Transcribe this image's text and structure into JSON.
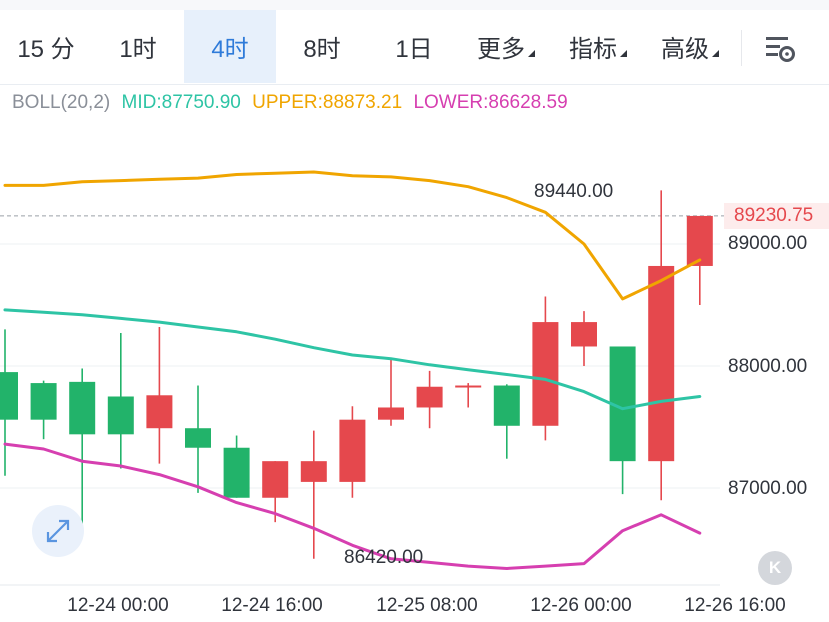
{
  "tabs": [
    {
      "label": "15 分",
      "active": false
    },
    {
      "label": "1时",
      "active": false
    },
    {
      "label": "4时",
      "active": true
    },
    {
      "label": "8时",
      "active": false
    },
    {
      "label": "1日",
      "active": false
    },
    {
      "label": "更多",
      "active": false,
      "dropdown": true
    },
    {
      "label": "指标",
      "active": false,
      "dropdown": true
    },
    {
      "label": "高级",
      "active": false,
      "dropdown": true
    }
  ],
  "settings_icon": "chart-settings-icon",
  "legend": {
    "name": "BOLL(20,2)",
    "mid": "MID:87750.90",
    "upper": "UPPER:88873.21",
    "lower": "LOWER:86628.59"
  },
  "colors": {
    "mid": "#2ec4a5",
    "upper": "#f0a500",
    "lower": "#d63fb0",
    "up": "#e5484d",
    "down": "#22b36a",
    "accent": "#2f7bd9"
  },
  "price_axis": [
    "89000.00",
    "88000.00",
    "87000.00"
  ],
  "last_price": "89230.75",
  "high_label": "89440.00",
  "low_label": "86420.00",
  "time_axis": [
    "12-24 00:00",
    "12-24 16:00",
    "12-25 08:00",
    "12-26 00:00",
    "12-26 16:00"
  ],
  "zoom_icon": "expand-arrows-icon",
  "k_button": "K",
  "chart_data": {
    "type": "candlestick",
    "candles": [
      {
        "o": 87950,
        "h": 88300,
        "l": 87100,
        "c": 87560
      },
      {
        "o": 87860,
        "h": 87880,
        "l": 87400,
        "c": 87560
      },
      {
        "o": 87870,
        "h": 87980,
        "l": 86620,
        "c": 87440
      },
      {
        "o": 87750,
        "h": 88270,
        "l": 87160,
        "c": 87440
      },
      {
        "o": 87490,
        "h": 88320,
        "l": 87200,
        "c": 87760
      },
      {
        "o": 87490,
        "h": 87840,
        "l": 86960,
        "c": 87330
      },
      {
        "o": 87330,
        "h": 87430,
        "l": 86920,
        "c": 86920
      },
      {
        "o": 86920,
        "h": 87220,
        "l": 86720,
        "c": 87220
      },
      {
        "o": 87050,
        "h": 87470,
        "l": 86420,
        "c": 87220
      },
      {
        "o": 87050,
        "h": 87670,
        "l": 86920,
        "c": 87560
      },
      {
        "o": 87560,
        "h": 88060,
        "l": 87510,
        "c": 87660
      },
      {
        "o": 87660,
        "h": 87960,
        "l": 87490,
        "c": 87830
      },
      {
        "o": 87840,
        "h": 87860,
        "l": 87660,
        "c": 87840
      },
      {
        "o": 87840,
        "h": 87850,
        "l": 87240,
        "c": 87510
      },
      {
        "o": 87510,
        "h": 88570,
        "l": 87390,
        "c": 88360
      },
      {
        "o": 88160,
        "h": 88450,
        "l": 88000,
        "c": 88360
      },
      {
        "o": 88160,
        "h": 88160,
        "l": 86950,
        "c": 87220
      },
      {
        "o": 87220,
        "h": 89440,
        "l": 86900,
        "c": 88820
      },
      {
        "o": 88820,
        "h": 89230,
        "l": 88500,
        "c": 89230
      }
    ],
    "boll_upper": [
      89480,
      89480,
      89510,
      89520,
      89530,
      89540,
      89570,
      89580,
      89590,
      89560,
      89550,
      89520,
      89470,
      89380,
      89260,
      89000,
      88550,
      88700,
      88870
    ],
    "boll_mid": [
      88460,
      88440,
      88420,
      88390,
      88360,
      88320,
      88280,
      88220,
      88150,
      88090,
      88060,
      88010,
      87970,
      87930,
      87890,
      87790,
      87650,
      87710,
      87750
    ],
    "boll_lower": [
      87360,
      87320,
      87220,
      87180,
      87110,
      87010,
      86880,
      86790,
      86670,
      86530,
      86420,
      86390,
      86360,
      86340,
      86360,
      86380,
      86650,
      86780,
      86630
    ]
  }
}
